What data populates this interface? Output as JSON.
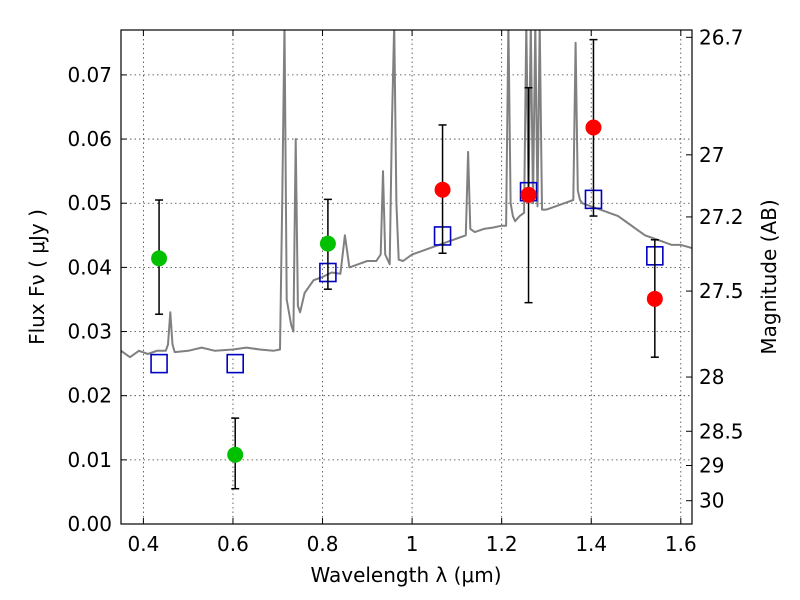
{
  "chart_data": {
    "type": "scatter",
    "title": "",
    "xlabel": "Wavelength  λ (μm)",
    "ylabel": "Flux  Fν  ( μJy )",
    "y2label": "Magnitude (AB)",
    "xlim": [
      0.35,
      1.625
    ],
    "ylim": [
      0.0,
      0.077
    ],
    "grid": true,
    "x_ticks": [
      0.4,
      0.6,
      0.8,
      1.0,
      1.2,
      1.4,
      1.6
    ],
    "x_tick_labels": [
      "0.4",
      "0.6",
      "0.8",
      "1",
      "1.2",
      "1.4",
      "1.6"
    ],
    "y_ticks": [
      0.0,
      0.01,
      0.02,
      0.03,
      0.04,
      0.05,
      0.06,
      0.07
    ],
    "y_tick_labels": [
      "0.00",
      "0.01",
      "0.02",
      "0.03",
      "0.04",
      "0.05",
      "0.06",
      "0.07"
    ],
    "mag_ticks": [
      26.7,
      27,
      27.2,
      27.5,
      28,
      28.5,
      29,
      30
    ],
    "mag_tick_labels": [
      "26.7",
      "27",
      "27.2",
      "27.5",
      "28",
      "28.5",
      "29",
      "30"
    ],
    "colors": {
      "model": "#808080",
      "green": "#00c000",
      "red": "#ff0000",
      "box": "#0000c0",
      "errorbar": "#000000"
    },
    "series": [
      {
        "kind": "model-spectrum",
        "x": [
          0.35,
          0.37,
          0.39,
          0.41,
          0.43,
          0.45,
          0.455,
          0.46,
          0.465,
          0.47,
          0.5,
          0.53,
          0.56,
          0.6,
          0.63,
          0.66,
          0.69,
          0.705,
          0.71,
          0.715,
          0.72,
          0.73,
          0.735,
          0.74,
          0.745,
          0.75,
          0.76,
          0.78,
          0.8,
          0.82,
          0.84,
          0.85,
          0.86,
          0.88,
          0.9,
          0.92,
          0.93,
          0.935,
          0.94,
          0.95,
          0.955,
          0.96,
          0.965,
          0.97,
          0.98,
          1.0,
          1.02,
          1.04,
          1.06,
          1.08,
          1.1,
          1.12,
          1.125,
          1.13,
          1.14,
          1.16,
          1.18,
          1.2,
          1.21,
          1.215,
          1.22,
          1.225,
          1.23,
          1.24,
          1.25,
          1.255,
          1.26,
          1.265,
          1.27,
          1.275,
          1.28,
          1.285,
          1.29,
          1.3,
          1.32,
          1.34,
          1.36,
          1.365,
          1.37,
          1.375,
          1.38,
          1.4,
          1.42,
          1.44,
          1.46,
          1.48,
          1.5,
          1.52,
          1.54,
          1.56,
          1.58,
          1.6,
          1.625
        ],
        "y": [
          0.027,
          0.026,
          0.027,
          0.0265,
          0.027,
          0.027,
          0.028,
          0.033,
          0.028,
          0.0268,
          0.027,
          0.0275,
          0.027,
          0.0272,
          0.0275,
          0.0272,
          0.027,
          0.0272,
          0.05,
          0.078,
          0.035,
          0.031,
          0.03,
          0.06,
          0.034,
          0.033,
          0.036,
          0.038,
          0.0385,
          0.0392,
          0.039,
          0.045,
          0.04,
          0.0405,
          0.041,
          0.041,
          0.042,
          0.055,
          0.042,
          0.0405,
          0.062,
          0.078,
          0.05,
          0.0412,
          0.041,
          0.042,
          0.0425,
          0.043,
          0.0435,
          0.044,
          0.0445,
          0.045,
          0.058,
          0.046,
          0.0455,
          0.046,
          0.0462,
          0.0465,
          0.0465,
          0.078,
          0.05,
          0.048,
          0.0472,
          0.048,
          0.0485,
          0.078,
          0.052,
          0.078,
          0.05,
          0.078,
          0.0495,
          0.078,
          0.049,
          0.049,
          0.0495,
          0.05,
          0.0505,
          0.075,
          0.052,
          0.0505,
          0.05,
          0.0495,
          0.049,
          0.0485,
          0.048,
          0.047,
          0.046,
          0.045,
          0.0445,
          0.044,
          0.0435,
          0.0435,
          0.043
        ]
      },
      {
        "kind": "model-photometry",
        "marker": "open-square",
        "x": [
          0.435,
          0.605,
          0.812,
          1.068,
          1.26,
          1.405,
          1.542
        ],
        "y": [
          0.025,
          0.025,
          0.0392,
          0.0449,
          0.0518,
          0.0506,
          0.0418
        ]
      },
      {
        "kind": "observed",
        "marker": "filled-circle",
        "color": "green",
        "x": [
          0.435,
          0.605,
          0.812
        ],
        "y": [
          0.0414,
          0.0108,
          0.0437
        ],
        "yerr_low": [
          0.0087,
          0.0053,
          0.0071
        ],
        "yerr_high": [
          0.0091,
          0.0057,
          0.0069
        ]
      },
      {
        "kind": "observed",
        "marker": "filled-circle",
        "color": "red",
        "x": [
          1.068,
          1.26,
          1.405,
          1.542
        ],
        "y": [
          0.0521,
          0.0513,
          0.0618,
          0.0351
        ],
        "yerr_low": [
          0.0099,
          0.0168,
          0.0138,
          0.0091
        ],
        "yerr_high": [
          0.0101,
          0.0167,
          0.0137,
          0.0092
        ]
      }
    ]
  }
}
